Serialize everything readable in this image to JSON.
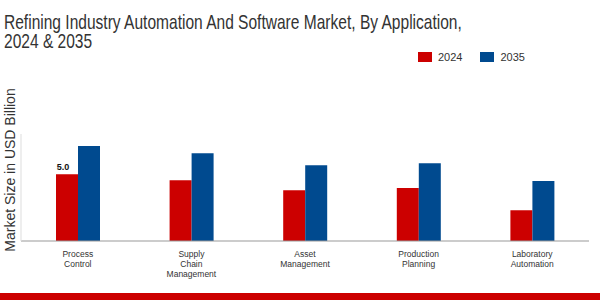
{
  "chart_data": {
    "type": "bar",
    "title": "Refining Industry Automation And Software Market, By Application, 2024 & 2035",
    "y_label": "Market Size in USD Billion",
    "categories": [
      "Process Control",
      "Supply Chain Management",
      "Asset Management",
      "Production Planning",
      "Laboratory Automation"
    ],
    "series": [
      {
        "name": "2024",
        "color": "#cc0000",
        "values": [
          5.0,
          4.55,
          3.8,
          3.96,
          2.3
        ],
        "value_labels": [
          "5.0",
          null,
          null,
          null,
          null
        ]
      },
      {
        "name": "2035",
        "color": "#004a8f",
        "values": [
          7.1,
          6.57,
          5.67,
          5.82,
          4.48
        ]
      }
    ],
    "ylim": [
      0,
      8
    ],
    "yticks": [],
    "tick_labels": "x",
    "legend": "top-right"
  }
}
